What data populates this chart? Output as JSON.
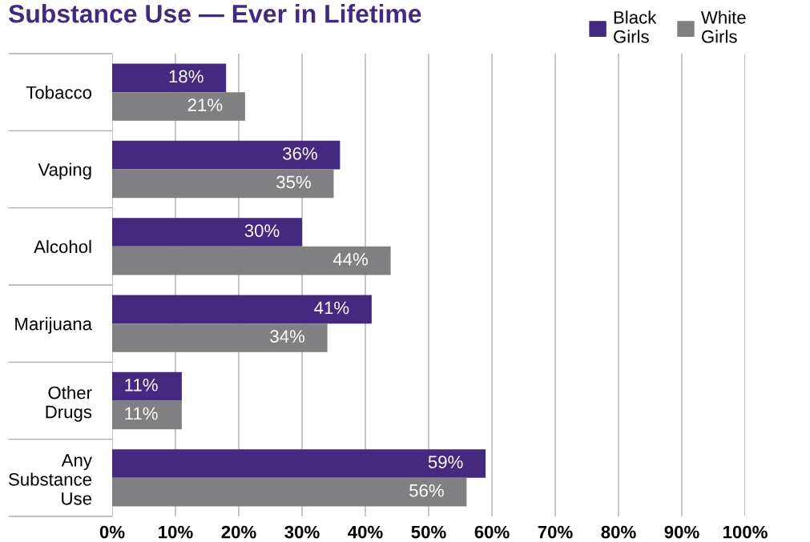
{
  "chart_data": {
    "type": "bar",
    "orientation": "horizontal",
    "title": "Substance Use — Ever in Lifetime",
    "categories": [
      "Tobacco",
      "Vaping",
      "Alcohol",
      "Marijuana",
      "Other\nDrugs",
      "Any\nSubstance\nUse"
    ],
    "series": [
      {
        "name": "Black\nGirls",
        "color": "#43297f",
        "values": [
          18,
          36,
          30,
          41,
          11,
          59
        ],
        "value_labels": [
          "18%",
          "36%",
          "30%",
          "41%",
          "11%",
          "59%"
        ]
      },
      {
        "name": "White\nGirls",
        "color": "#808083",
        "values": [
          21,
          35,
          44,
          34,
          11,
          56
        ],
        "value_labels": [
          "21%",
          "35%",
          "44%",
          "34%",
          "11%",
          "56%"
        ]
      }
    ],
    "xlim": [
      0,
      100
    ],
    "xticks": [
      {
        "value": 0,
        "label": "0%"
      },
      {
        "value": 10,
        "label": "10%"
      },
      {
        "value": 20,
        "label": "20%"
      },
      {
        "value": 30,
        "label": "30%"
      },
      {
        "value": 40,
        "label": "40%"
      },
      {
        "value": 50,
        "label": "50%"
      },
      {
        "value": 60,
        "label": "60%"
      },
      {
        "value": 70,
        "label": "70%"
      },
      {
        "value": 80,
        "label": "80%"
      },
      {
        "value": 90,
        "label": "90%"
      },
      {
        "value": 100,
        "label": "100%"
      }
    ],
    "grid": "x",
    "legend": "top right"
  }
}
